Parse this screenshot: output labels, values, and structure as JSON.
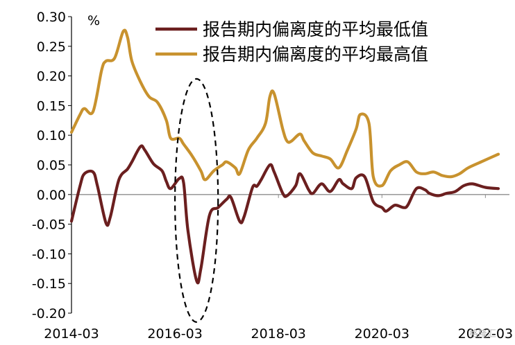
{
  "chart_data": {
    "type": "line",
    "title": "",
    "unit_label": "%",
    "xlabel": "",
    "ylabel": "",
    "ylim": [
      -0.2,
      0.3
    ],
    "yticks": [
      "0.30",
      "0.25",
      "0.20",
      "0.15",
      "0.10",
      "0.05",
      "0.00",
      "-0.05",
      "-0.10",
      "-0.15",
      "-0.20"
    ],
    "ytick_values": [
      0.3,
      0.25,
      0.2,
      0.15,
      0.1,
      0.05,
      0.0,
      -0.05,
      -0.1,
      -0.15,
      -0.2
    ],
    "xlim": [
      "2014-03",
      "2022-06"
    ],
    "xticks": [
      "2014-03",
      "2016-03",
      "2018-03",
      "2020-03",
      "2022-03"
    ],
    "legend_position": "top-right",
    "grid": false,
    "series": [
      {
        "name": "报告期内偏离度的平均最低值",
        "color": "#6b1f1f",
        "points": [
          [
            "2014-03",
            -0.045
          ],
          [
            "2014-05",
            0.015
          ],
          [
            "2014-06",
            0.035
          ],
          [
            "2014-08",
            0.038
          ],
          [
            "2014-09",
            0.015
          ],
          [
            "2014-11",
            -0.048
          ],
          [
            "2014-12",
            -0.038
          ],
          [
            "2015-02",
            0.025
          ],
          [
            "2015-04",
            0.043
          ],
          [
            "2015-05",
            0.055
          ],
          [
            "2015-07",
            0.081
          ],
          [
            "2015-08",
            0.075
          ],
          [
            "2015-10",
            0.052
          ],
          [
            "2015-12",
            0.04
          ],
          [
            "2016-01",
            0.022
          ],
          [
            "2016-02",
            0.01
          ],
          [
            "2016-04",
            0.027
          ],
          [
            "2016-05",
            0.02
          ],
          [
            "2016-06",
            -0.06
          ],
          [
            "2016-08",
            -0.145
          ],
          [
            "2016-09",
            -0.125
          ],
          [
            "2016-11",
            -0.035
          ],
          [
            "2017-01",
            -0.022
          ],
          [
            "2017-03",
            -0.008
          ],
          [
            "2017-04",
            -0.005
          ],
          [
            "2017-06",
            -0.045
          ],
          [
            "2017-07",
            -0.038
          ],
          [
            "2017-09",
            0.012
          ],
          [
            "2017-10",
            0.014
          ],
          [
            "2017-11",
            0.025
          ],
          [
            "2018-01",
            0.05
          ],
          [
            "2018-02",
            0.038
          ],
          [
            "2018-04",
            0.002
          ],
          [
            "2018-05",
            -0.002
          ],
          [
            "2018-07",
            0.015
          ],
          [
            "2018-08",
            0.035
          ],
          [
            "2018-10",
            0.008
          ],
          [
            "2018-11",
            0.002
          ],
          [
            "2019-01",
            0.018
          ],
          [
            "2019-03",
            0.005
          ],
          [
            "2019-05",
            0.025
          ],
          [
            "2019-06",
            0.018
          ],
          [
            "2019-08",
            0.01
          ],
          [
            "2019-09",
            0.028
          ],
          [
            "2019-11",
            0.03
          ],
          [
            "2020-01",
            -0.012
          ],
          [
            "2020-03",
            -0.022
          ],
          [
            "2020-04",
            -0.028
          ],
          [
            "2020-06",
            -0.018
          ],
          [
            "2020-08",
            -0.022
          ],
          [
            "2020-09",
            -0.018
          ],
          [
            "2020-11",
            0.01
          ],
          [
            "2021-01",
            0.008
          ],
          [
            "2021-02",
            0.002
          ],
          [
            "2021-04",
            -0.002
          ],
          [
            "2021-06",
            0.002
          ],
          [
            "2021-08",
            0.005
          ],
          [
            "2021-10",
            0.015
          ],
          [
            "2021-12",
            0.018
          ],
          [
            "2022-03",
            0.012
          ],
          [
            "2022-06",
            0.01
          ]
        ]
      },
      {
        "name": "报告期内偏离度的平均最高值",
        "color": "#c8922e",
        "points": [
          [
            "2014-03",
            0.105
          ],
          [
            "2014-05",
            0.135
          ],
          [
            "2014-06",
            0.145
          ],
          [
            "2014-08",
            0.14
          ],
          [
            "2014-10",
            0.21
          ],
          [
            "2014-11",
            0.225
          ],
          [
            "2015-01",
            0.23
          ],
          [
            "2015-03",
            0.275
          ],
          [
            "2015-04",
            0.265
          ],
          [
            "2015-05",
            0.225
          ],
          [
            "2015-07",
            0.19
          ],
          [
            "2015-09",
            0.165
          ],
          [
            "2015-11",
            0.155
          ],
          [
            "2016-01",
            0.125
          ],
          [
            "2016-02",
            0.095
          ],
          [
            "2016-04",
            0.095
          ],
          [
            "2016-05",
            0.085
          ],
          [
            "2016-07",
            0.065
          ],
          [
            "2016-09",
            0.04
          ],
          [
            "2016-10",
            0.025
          ],
          [
            "2016-12",
            0.04
          ],
          [
            "2017-02",
            0.05
          ],
          [
            "2017-03",
            0.055
          ],
          [
            "2017-05",
            0.045
          ],
          [
            "2017-06",
            0.035
          ],
          [
            "2017-08",
            0.075
          ],
          [
            "2017-10",
            0.095
          ],
          [
            "2017-12",
            0.12
          ],
          [
            "2018-01",
            0.165
          ],
          [
            "2018-02",
            0.17
          ],
          [
            "2018-04",
            0.11
          ],
          [
            "2018-05",
            0.09
          ],
          [
            "2018-06",
            0.09
          ],
          [
            "2018-08",
            0.102
          ],
          [
            "2018-09",
            0.09
          ],
          [
            "2018-11",
            0.07
          ],
          [
            "2019-01",
            0.065
          ],
          [
            "2019-03",
            0.06
          ],
          [
            "2019-05",
            0.045
          ],
          [
            "2019-07",
            0.075
          ],
          [
            "2019-09",
            0.11
          ],
          [
            "2019-10",
            0.135
          ],
          [
            "2019-12",
            0.12
          ],
          [
            "2020-01",
            0.03
          ],
          [
            "2020-03",
            0.015
          ],
          [
            "2020-05",
            0.04
          ],
          [
            "2020-07",
            0.05
          ],
          [
            "2020-09",
            0.055
          ],
          [
            "2020-11",
            0.038
          ],
          [
            "2021-01",
            0.035
          ],
          [
            "2021-03",
            0.038
          ],
          [
            "2021-05",
            0.032
          ],
          [
            "2021-07",
            0.03
          ],
          [
            "2021-09",
            0.035
          ],
          [
            "2021-11",
            0.045
          ],
          [
            "2022-02",
            0.055
          ],
          [
            "2022-06",
            0.068
          ]
        ]
      }
    ],
    "annotations": [
      {
        "type": "dashed-ellipse",
        "around": [
          "2016-03",
          "2017-01"
        ],
        "yrange": [
          -0.215,
          0.195
        ]
      }
    ]
  },
  "watermark": {
    "text": "格隆汇"
  }
}
